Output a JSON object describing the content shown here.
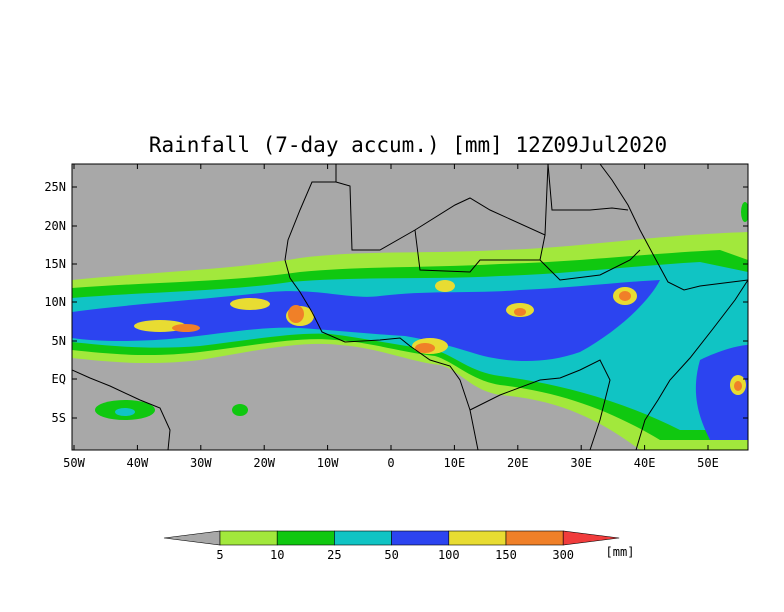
{
  "title": "Rainfall (7-day accum.) [mm] 12Z09Jul2020",
  "map": {
    "background_color": "#a8a8a8",
    "x_ticks": [
      "50W",
      "40W",
      "30W",
      "20W",
      "10W",
      "0",
      "10E",
      "20E",
      "30E",
      "40E",
      "50E"
    ],
    "y_ticks": [
      "25N",
      "20N",
      "15N",
      "10N",
      "5N",
      "EQ",
      "5S"
    ]
  },
  "legend": {
    "labels": [
      "5",
      "10",
      "25",
      "50",
      "100",
      "150",
      "300"
    ],
    "unit": "[mm]",
    "colors": [
      "#a8a8a8",
      "#a2e83c",
      "#10c810",
      "#10c4c4",
      "#2c44f0",
      "#e8dc32",
      "#f08028",
      "#f03c3c"
    ]
  }
}
